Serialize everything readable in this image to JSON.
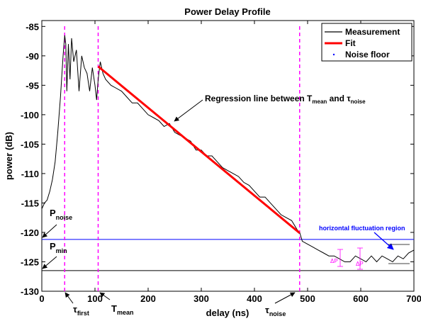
{
  "chart_data": {
    "type": "line",
    "title": "Power Delay Profile",
    "xlabel": "delay (ns)",
    "ylabel": "power (dB)",
    "xlim": [
      0,
      700
    ],
    "ylim": [
      -130,
      -84
    ],
    "xticks": [
      0,
      100,
      200,
      300,
      400,
      500,
      600,
      700
    ],
    "yticks": [
      -85,
      -90,
      -95,
      -100,
      -105,
      -110,
      -115,
      -120,
      -125,
      -130
    ],
    "grid": false,
    "legend": {
      "position": "top-right",
      "entries": [
        {
          "label": "Measurement",
          "color": "#000000",
          "style": "line"
        },
        {
          "label": "Fit",
          "color": "#ff0000",
          "style": "thick-line"
        },
        {
          "label": "Noise floor",
          "color": "#0000ff",
          "style": "dot"
        }
      ]
    },
    "series": [
      {
        "name": "Measurement",
        "color": "#000000",
        "x": [
          0,
          5,
          10,
          15,
          20,
          25,
          30,
          35,
          40,
          43,
          45,
          47,
          50,
          53,
          56,
          60,
          65,
          70,
          75,
          80,
          85,
          90,
          95,
          100,
          103,
          106,
          110,
          115,
          120,
          130,
          140,
          150,
          160,
          170,
          180,
          190,
          200,
          210,
          220,
          230,
          240,
          250,
          260,
          270,
          280,
          290,
          300,
          310,
          320,
          330,
          340,
          350,
          360,
          370,
          380,
          390,
          400,
          410,
          420,
          430,
          440,
          450,
          460,
          470,
          480,
          485,
          490,
          500,
          510,
          520,
          530,
          540,
          550,
          560,
          570,
          580,
          590,
          600,
          610,
          620,
          630,
          640,
          650,
          660,
          670,
          680,
          690,
          700
        ],
        "y": [
          -116,
          -115,
          -114.5,
          -113,
          -111,
          -108,
          -103,
          -97,
          -90,
          -86.5,
          -88,
          -96,
          -88,
          -94,
          -87,
          -91,
          -89,
          -96,
          -90,
          -92,
          -93,
          -96,
          -92,
          -95,
          -97.5,
          -94,
          -91,
          -93,
          -94,
          -95,
          -95.5,
          -96,
          -97,
          -98,
          -98,
          -99,
          -100,
          -100.5,
          -101,
          -102,
          -101.5,
          -103,
          -103.5,
          -104,
          -104.5,
          -106,
          -106,
          -107,
          -107,
          -108,
          -109,
          -109.5,
          -110,
          -110.5,
          -111.5,
          -112,
          -113,
          -114,
          -114,
          -115,
          -116,
          -117,
          -117.5,
          -118,
          -119.5,
          -120,
          -121.5,
          -122,
          -122.5,
          -123,
          -123.5,
          -124,
          -124,
          -124.5,
          -125,
          -125,
          -124,
          -124.5,
          -125,
          -124,
          -125,
          -124,
          -124.5,
          -125,
          -124,
          -124.5,
          -123.5,
          -123
        ]
      },
      {
        "name": "Fit",
        "color": "#ff0000",
        "x": [
          106,
          485
        ],
        "y": [
          -91.8,
          -120.1
        ]
      }
    ],
    "reference_lines": [
      {
        "label": "P_noise",
        "y": -121.2,
        "color": "#0000ff",
        "orientation": "horizontal"
      },
      {
        "label": "P_min",
        "y": -126.5,
        "color": "#000000",
        "orientation": "horizontal"
      },
      {
        "label": "τ_first",
        "x": 43,
        "color": "#ff00ff",
        "orientation": "vertical"
      },
      {
        "label": "T_mean",
        "x": 106,
        "color": "#ff00ff",
        "orientation": "vertical"
      },
      {
        "label": "τ_noise",
        "x": 485,
        "color": "#ff00ff",
        "orientation": "vertical"
      }
    ],
    "annotations": {
      "regression": {
        "text": "Regression line between ",
        "t_base": "T",
        "t_sub": "mean",
        "mid": " and ",
        "tau_base": "τ",
        "tau_sub": "noise"
      },
      "horizontal_region": {
        "text": "horizontal fluctuation region"
      },
      "p_noise": {
        "base": "P",
        "sub": "noise"
      },
      "p_min": {
        "base": "P",
        "sub": "min"
      },
      "tau_first": {
        "base": "τ",
        "sub": "first"
      },
      "t_mean": {
        "base": "T",
        "sub": "mean"
      },
      "tau_noise": {
        "base": "τ",
        "sub": "noise"
      },
      "delta_p": "ΔP"
    }
  }
}
